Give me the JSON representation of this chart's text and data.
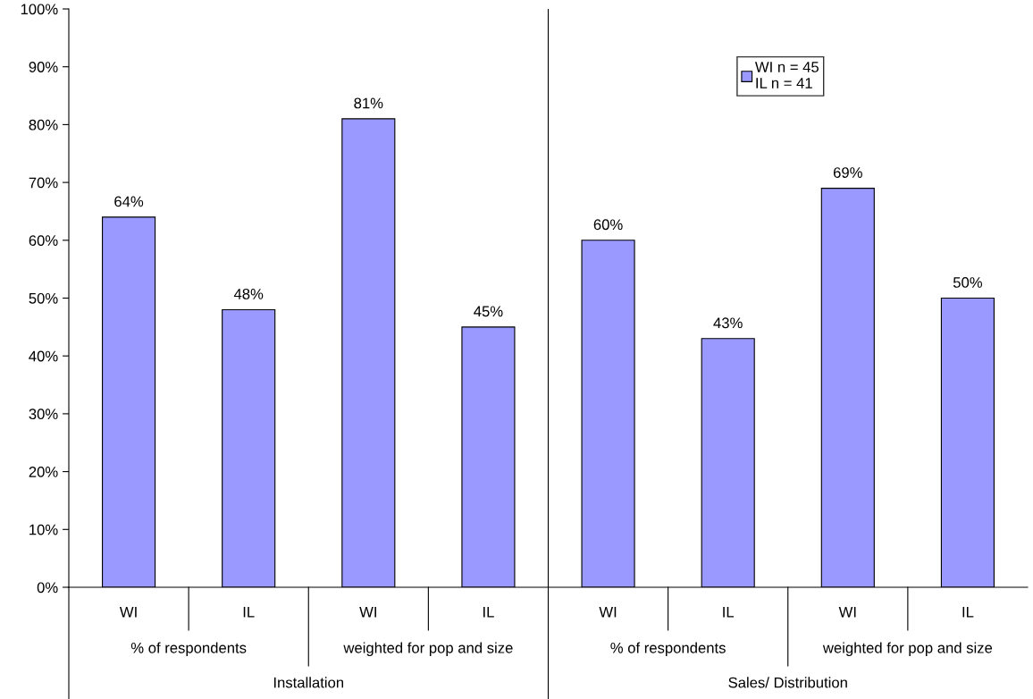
{
  "chart_data": {
    "type": "bar",
    "categories": [
      "WI",
      "IL",
      "WI",
      "IL",
      "WI",
      "IL",
      "WI",
      "IL"
    ],
    "series": [
      {
        "name": "WI n = 45\nIL n = 41",
        "color": "#9999ff",
        "values": [
          64,
          48,
          81,
          45,
          60,
          43,
          69,
          50
        ]
      }
    ],
    "value_labels": [
      "64%",
      "48%",
      "81%",
      "45%",
      "60%",
      "43%",
      "69%",
      "50%"
    ],
    "ylim": [
      0,
      100
    ],
    "yticks": [
      {
        "value": 0,
        "label": "0%"
      },
      {
        "value": 10,
        "label": "10%"
      },
      {
        "value": 20,
        "label": "20%"
      },
      {
        "value": 30,
        "label": "30%"
      },
      {
        "value": 40,
        "label": "40%"
      },
      {
        "value": 50,
        "label": "50%"
      },
      {
        "value": 60,
        "label": "60%"
      },
      {
        "value": 70,
        "label": "70%"
      },
      {
        "value": 80,
        "label": "80%"
      },
      {
        "value": 90,
        "label": "90%"
      },
      {
        "value": 100,
        "label": "100%"
      }
    ],
    "annotations": [
      "% of respondents",
      "weighted for pop and size",
      "% of respondents",
      "weighted for pop and size",
      "Installation",
      "Sales/ Distribution"
    ],
    "grid": false,
    "legend": "top right"
  }
}
